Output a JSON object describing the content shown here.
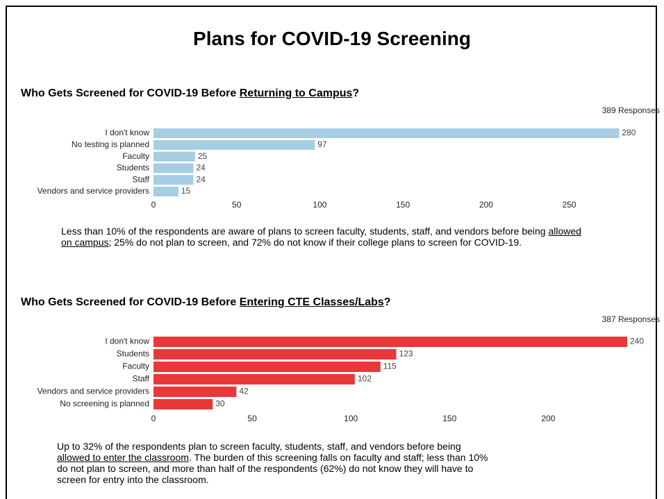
{
  "title": "Plans for COVID-19 Screening",
  "chart_data": [
    {
      "type": "bar",
      "orientation": "horizontal",
      "heading": [
        "Who Gets Screened for COVID-19 Before ",
        "Returning to Campus",
        "?"
      ],
      "responses": "389 Responses",
      "categories": [
        "I don't know",
        "No testing is planned",
        "Faculty",
        "Students",
        "Staff",
        "Vendors and service providers"
      ],
      "values": [
        280,
        97,
        25,
        24,
        24,
        15
      ],
      "color": "#a6cde2",
      "xlim": [
        0,
        284
      ],
      "xticks": [
        0,
        50,
        100,
        150,
        200,
        250
      ],
      "note": [
        "Less than 10% of the respondents are aware of plans to screen faculty, students, staff, and vendors before being ",
        "allowed on campus",
        "; 25% do not plan to screen, and 72% do not know if their college plans to screen for COVID-19."
      ]
    },
    {
      "type": "bar",
      "orientation": "horizontal",
      "heading": [
        "Who Gets Screened for COVID-19 Before ",
        "Entering CTE Classes/Labs",
        "?"
      ],
      "responses": "387 Responses",
      "categories": [
        "I don't know",
        "Students",
        "Faculty",
        "Staff",
        "Vendors and service providers",
        "No screening is planned"
      ],
      "values": [
        240,
        123,
        115,
        102,
        42,
        30
      ],
      "color": "#e8383a",
      "xlim": [
        0,
        240
      ],
      "xticks": [
        0,
        50,
        100,
        150,
        200
      ],
      "note": [
        "Up to 32% of the respondents plan to screen faculty, students, staff, and vendors before being ",
        "allowed to enter the classroom",
        ". The burden of this screening falls on faculty and staff; less than 10% do not plan to screen, and more than half of the respondents (62%) do not know they will have to screen for entry into the classroom."
      ]
    }
  ]
}
